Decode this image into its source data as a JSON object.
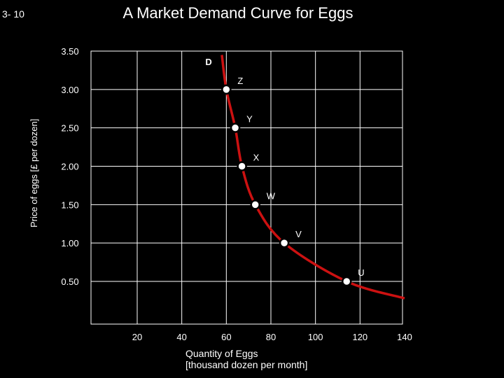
{
  "slide_number": "3- 10",
  "title": "A Market Demand Curve for Eggs",
  "chart_data": {
    "type": "line",
    "title": "A Market Demand Curve for Eggs",
    "xlabel_line1": "Quantity of Eggs",
    "xlabel_line2": "[thousand dozen per month]",
    "ylabel": "Price of eggs [£ per dozen]",
    "xlim": [
      0,
      140
    ],
    "ylim": [
      0.25,
      3.5
    ],
    "x_ticks": [
      "20",
      "40",
      "60",
      "80",
      "100",
      "120",
      "140"
    ],
    "y_ticks": [
      "3.50",
      "3.00",
      "2.50",
      "2.00",
      "1.50",
      "1.00",
      "0.50"
    ],
    "grid": true,
    "curve_label": "D",
    "curve_color": "#cc1111",
    "series": [
      {
        "points": [
          {
            "label": "Z",
            "x": 60,
            "y": 3.0
          },
          {
            "label": "Y",
            "x": 64,
            "y": 2.5
          },
          {
            "label": "X",
            "x": 67,
            "y": 2.0
          },
          {
            "label": "W",
            "x": 73,
            "y": 1.5
          },
          {
            "label": "V",
            "x": 86,
            "y": 1.0
          },
          {
            "label": "U",
            "x": 114,
            "y": 0.5
          }
        ]
      }
    ],
    "curve_extension": [
      {
        "x": 58,
        "y": 3.45
      },
      {
        "x": 140,
        "y": 0.28
      }
    ]
  }
}
